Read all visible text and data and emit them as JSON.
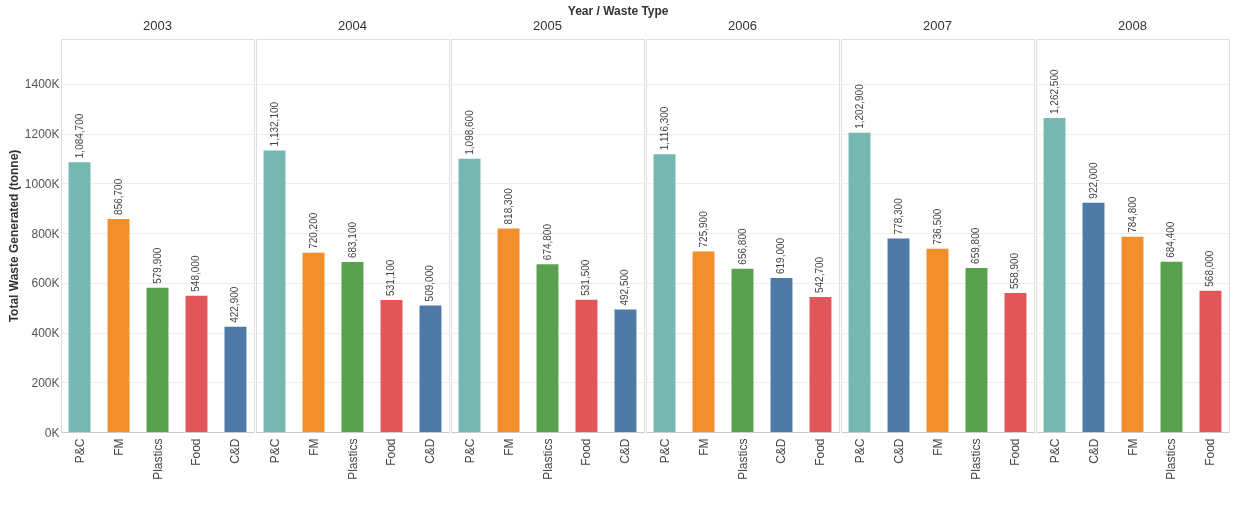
{
  "chart_data": [
    {
      "type": "bar",
      "title": "2003",
      "annotations": [
        "Year / Waste Type"
      ],
      "ylabel": "Total Waste Generated (tonne)",
      "categories": [
        "P&C",
        "FM",
        "Plastics",
        "Food",
        "C&D"
      ],
      "values": [
        1084700,
        856700,
        579900,
        548000,
        422900
      ],
      "value_labels": [
        "1,084,700",
        "856,700",
        "579,900",
        "548,000",
        "422,900"
      ],
      "colors": [
        "#76b7b2",
        "#f28e2b",
        "#59a14f",
        "#e15759",
        "#4e79a7"
      ],
      "ylim": [
        0,
        1580000
      ],
      "yticks": [
        {
          "value": 0,
          "label": "0K"
        },
        {
          "value": 200000,
          "label": "200K"
        },
        {
          "value": 400000,
          "label": "400K"
        },
        {
          "value": 600000,
          "label": "600K"
        },
        {
          "value": 800000,
          "label": "800K"
        },
        {
          "value": 1000000,
          "label": "1000K"
        },
        {
          "value": 1200000,
          "label": "1200K"
        },
        {
          "value": 1400000,
          "label": "1400K"
        }
      ],
      "grid": "y"
    },
    {
      "type": "bar",
      "title": "2004",
      "categories": [
        "P&C",
        "FM",
        "Plastics",
        "Food",
        "C&D"
      ],
      "values": [
        1132100,
        720200,
        683100,
        531100,
        509000
      ],
      "value_labels": [
        "1,132,100",
        "720,200",
        "683,100",
        "531,100",
        "509,000"
      ],
      "colors": [
        "#76b7b2",
        "#f28e2b",
        "#59a14f",
        "#e15759",
        "#4e79a7"
      ],
      "ylim": [
        0,
        1580000
      ],
      "tick_labels": "x",
      "grid": "y"
    },
    {
      "type": "bar",
      "title": "2005",
      "categories": [
        "P&C",
        "FM",
        "Plastics",
        "Food",
        "C&D"
      ],
      "values": [
        1098600,
        818300,
        674800,
        531500,
        492500
      ],
      "value_labels": [
        "1,098,600",
        "818,300",
        "674,800",
        "531,500",
        "492,500"
      ],
      "colors": [
        "#76b7b2",
        "#f28e2b",
        "#59a14f",
        "#e15759",
        "#4e79a7"
      ],
      "ylim": [
        0,
        1580000
      ],
      "tick_labels": "x",
      "grid": "y"
    },
    {
      "type": "bar",
      "title": "2006",
      "categories": [
        "P&C",
        "FM",
        "Plastics",
        "C&D",
        "Food"
      ],
      "values": [
        1116300,
        725900,
        656800,
        619000,
        542700
      ],
      "value_labels": [
        "1,116,300",
        "725,900",
        "656,800",
        "619,000",
        "542,700"
      ],
      "colors": [
        "#76b7b2",
        "#f28e2b",
        "#59a14f",
        "#4e79a7",
        "#e15759"
      ],
      "ylim": [
        0,
        1580000
      ],
      "tick_labels": "x",
      "grid": "y"
    },
    {
      "type": "bar",
      "title": "2007",
      "categories": [
        "P&C",
        "C&D",
        "FM",
        "Plastics",
        "Food"
      ],
      "values": [
        1202900,
        778300,
        736500,
        659800,
        558900
      ],
      "value_labels": [
        "1,202,900",
        "778,300",
        "736,500",
        "659,800",
        "558,900"
      ],
      "colors": [
        "#76b7b2",
        "#4e79a7",
        "#f28e2b",
        "#59a14f",
        "#e15759"
      ],
      "ylim": [
        0,
        1580000
      ],
      "tick_labels": "x",
      "grid": "y"
    },
    {
      "type": "bar",
      "title": "2008",
      "categories": [
        "P&C",
        "C&D",
        "FM",
        "Plastics",
        "Food"
      ],
      "values": [
        1262500,
        922000,
        784800,
        684400,
        568000
      ],
      "value_labels": [
        "1,262,500",
        "922,000",
        "784,800",
        "684,400",
        "568,000"
      ],
      "colors": [
        "#76b7b2",
        "#4e79a7",
        "#f28e2b",
        "#59a14f",
        "#e15759"
      ],
      "ylim": [
        0,
        1580000
      ],
      "tick_labels": "x",
      "grid": "y"
    }
  ]
}
